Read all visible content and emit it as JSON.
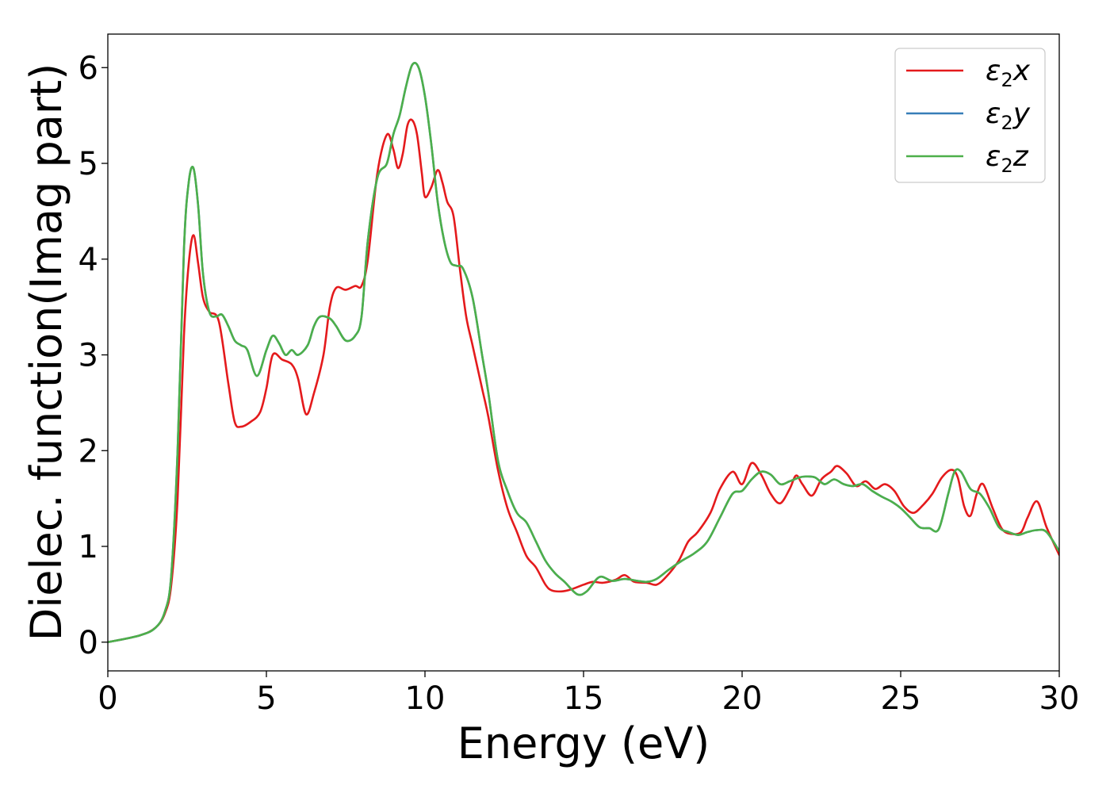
{
  "chart_data": {
    "type": "line",
    "title": "",
    "xlabel": "Energy (eV)",
    "ylabel": "Dielec. function(Imag part)",
    "xlim": [
      0,
      30
    ],
    "ylim": [
      -0.3,
      6.35
    ],
    "xticks": [
      0,
      5,
      10,
      15,
      20,
      25,
      30
    ],
    "xtick_labels": [
      "0",
      "5",
      "10",
      "15",
      "20",
      "25",
      "30"
    ],
    "yticks": [
      0,
      1,
      2,
      3,
      4,
      5,
      6
    ],
    "ytick_labels": [
      "0",
      "1",
      "2",
      "3",
      "4",
      "5",
      "6"
    ],
    "grid": false,
    "legend_position": "top-right",
    "series": [
      {
        "name": "ε2x",
        "label_main": "ε",
        "label_sub": "2",
        "label_var": "x",
        "color": "#e41a1c",
        "x": [
          0,
          1,
          1.5,
          1.8,
          2.0,
          2.2,
          2.4,
          2.55,
          2.7,
          2.85,
          3.0,
          3.2,
          3.5,
          3.8,
          4.0,
          4.2,
          4.5,
          4.8,
          5.0,
          5.2,
          5.5,
          5.8,
          6.0,
          6.25,
          6.5,
          6.8,
          7.0,
          7.2,
          7.5,
          7.8,
          8.0,
          8.2,
          8.5,
          8.8,
          9.0,
          9.15,
          9.3,
          9.45,
          9.6,
          9.75,
          9.9,
          10.0,
          10.2,
          10.4,
          10.55,
          10.7,
          10.9,
          11.1,
          11.3,
          11.5,
          11.8,
          12.0,
          12.3,
          12.6,
          12.9,
          13.2,
          13.5,
          13.8,
          14.0,
          14.3,
          14.6,
          15.0,
          15.3,
          15.6,
          16.0,
          16.3,
          16.6,
          17.0,
          17.3,
          17.6,
          18.0,
          18.3,
          18.6,
          19.0,
          19.3,
          19.7,
          20.0,
          20.3,
          20.6,
          20.9,
          21.2,
          21.5,
          21.7,
          21.9,
          22.2,
          22.5,
          22.8,
          23.0,
          23.3,
          23.6,
          23.9,
          24.2,
          24.5,
          24.8,
          25.1,
          25.4,
          25.7,
          26.0,
          26.3,
          26.6,
          26.8,
          27.0,
          27.2,
          27.4,
          27.6,
          27.9,
          28.2,
          28.5,
          28.8,
          29.0,
          29.3,
          29.6,
          30.0
        ],
        "values": [
          0.0,
          0.07,
          0.15,
          0.3,
          0.6,
          1.5,
          3.2,
          3.95,
          4.25,
          3.95,
          3.6,
          3.45,
          3.35,
          2.7,
          2.3,
          2.25,
          2.3,
          2.4,
          2.65,
          3.0,
          2.95,
          2.9,
          2.75,
          2.38,
          2.6,
          3.0,
          3.5,
          3.7,
          3.68,
          3.72,
          3.72,
          4.0,
          4.9,
          5.3,
          5.15,
          4.95,
          5.1,
          5.4,
          5.45,
          5.3,
          4.9,
          4.65,
          4.75,
          4.93,
          4.8,
          4.6,
          4.45,
          3.9,
          3.4,
          3.1,
          2.65,
          2.35,
          1.8,
          1.4,
          1.15,
          0.9,
          0.78,
          0.6,
          0.54,
          0.53,
          0.55,
          0.6,
          0.63,
          0.62,
          0.65,
          0.7,
          0.63,
          0.62,
          0.6,
          0.68,
          0.85,
          1.05,
          1.15,
          1.35,
          1.6,
          1.78,
          1.65,
          1.87,
          1.75,
          1.55,
          1.45,
          1.6,
          1.74,
          1.65,
          1.53,
          1.7,
          1.78,
          1.84,
          1.76,
          1.63,
          1.68,
          1.6,
          1.65,
          1.58,
          1.42,
          1.35,
          1.43,
          1.55,
          1.72,
          1.8,
          1.72,
          1.42,
          1.32,
          1.55,
          1.65,
          1.4,
          1.18,
          1.13,
          1.15,
          1.3,
          1.47,
          1.2,
          0.91
        ]
      },
      {
        "name": "ε2y",
        "label_main": "ε",
        "label_sub": "2",
        "label_var": "y",
        "color": "#377eb8",
        "x": [
          0,
          1,
          1.5,
          1.8,
          2.0,
          2.2,
          2.4,
          2.55,
          2.7,
          2.85,
          3.0,
          3.2,
          3.4,
          3.6,
          3.8,
          4.0,
          4.2,
          4.4,
          4.7,
          5.0,
          5.2,
          5.4,
          5.6,
          5.8,
          6.0,
          6.3,
          6.5,
          6.7,
          7.0,
          7.2,
          7.5,
          7.8,
          8.0,
          8.2,
          8.5,
          8.8,
          9.0,
          9.2,
          9.4,
          9.6,
          9.8,
          10.0,
          10.2,
          10.4,
          10.6,
          10.8,
          11.0,
          11.2,
          11.5,
          11.8,
          12.0,
          12.3,
          12.6,
          12.9,
          13.2,
          13.5,
          13.8,
          14.1,
          14.4,
          14.8,
          15.1,
          15.5,
          15.9,
          16.3,
          16.7,
          17.0,
          17.3,
          17.7,
          18.1,
          18.5,
          18.9,
          19.3,
          19.7,
          20.0,
          20.3,
          20.6,
          20.9,
          21.2,
          21.5,
          21.8,
          22.0,
          22.3,
          22.6,
          22.9,
          23.2,
          23.5,
          23.8,
          24.1,
          24.4,
          24.7,
          25.0,
          25.3,
          25.6,
          25.9,
          26.2,
          26.5,
          26.7,
          26.9,
          27.2,
          27.5,
          27.8,
          28.1,
          28.4,
          28.7,
          29.0,
          29.3,
          29.6,
          30.0
        ],
        "values": [
          0.0,
          0.07,
          0.15,
          0.32,
          0.7,
          2.0,
          4.1,
          4.8,
          4.95,
          4.55,
          3.85,
          3.45,
          3.4,
          3.42,
          3.3,
          3.15,
          3.1,
          3.05,
          2.78,
          3.05,
          3.2,
          3.12,
          3.0,
          3.05,
          3.0,
          3.1,
          3.3,
          3.4,
          3.38,
          3.3,
          3.15,
          3.2,
          3.4,
          4.2,
          4.85,
          5.0,
          5.3,
          5.5,
          5.8,
          6.03,
          6.0,
          5.7,
          5.2,
          4.6,
          4.2,
          3.97,
          3.93,
          3.9,
          3.6,
          3.0,
          2.6,
          1.9,
          1.58,
          1.35,
          1.25,
          1.05,
          0.85,
          0.72,
          0.63,
          0.5,
          0.53,
          0.68,
          0.64,
          0.66,
          0.64,
          0.63,
          0.66,
          0.76,
          0.85,
          0.93,
          1.05,
          1.3,
          1.55,
          1.58,
          1.7,
          1.78,
          1.75,
          1.65,
          1.68,
          1.72,
          1.73,
          1.72,
          1.65,
          1.7,
          1.65,
          1.63,
          1.65,
          1.58,
          1.52,
          1.47,
          1.4,
          1.3,
          1.2,
          1.19,
          1.18,
          1.55,
          1.78,
          1.78,
          1.6,
          1.55,
          1.4,
          1.2,
          1.15,
          1.12,
          1.15,
          1.17,
          1.15,
          0.95
        ]
      },
      {
        "name": "ε2z",
        "label_main": "ε",
        "label_sub": "2",
        "label_var": "z",
        "color": "#4daf4a",
        "x": [
          0,
          1,
          1.5,
          1.8,
          2.0,
          2.2,
          2.4,
          2.55,
          2.7,
          2.85,
          3.0,
          3.2,
          3.4,
          3.6,
          3.8,
          4.0,
          4.2,
          4.4,
          4.7,
          5.0,
          5.2,
          5.4,
          5.6,
          5.8,
          6.0,
          6.3,
          6.5,
          6.7,
          7.0,
          7.2,
          7.5,
          7.8,
          8.0,
          8.2,
          8.5,
          8.8,
          9.0,
          9.2,
          9.4,
          9.6,
          9.8,
          10.0,
          10.2,
          10.4,
          10.6,
          10.8,
          11.0,
          11.2,
          11.5,
          11.8,
          12.0,
          12.3,
          12.6,
          12.9,
          13.2,
          13.5,
          13.8,
          14.1,
          14.4,
          14.8,
          15.1,
          15.5,
          15.9,
          16.3,
          16.7,
          17.0,
          17.3,
          17.7,
          18.1,
          18.5,
          18.9,
          19.3,
          19.7,
          20.0,
          20.3,
          20.6,
          20.9,
          21.2,
          21.5,
          21.8,
          22.0,
          22.3,
          22.6,
          22.9,
          23.2,
          23.5,
          23.8,
          24.1,
          24.4,
          24.7,
          25.0,
          25.3,
          25.6,
          25.9,
          26.2,
          26.5,
          26.7,
          26.9,
          27.2,
          27.5,
          27.8,
          28.1,
          28.4,
          28.7,
          29.0,
          29.3,
          29.6,
          30.0
        ],
        "values": [
          0.0,
          0.07,
          0.15,
          0.32,
          0.7,
          2.0,
          4.1,
          4.8,
          4.95,
          4.55,
          3.85,
          3.45,
          3.4,
          3.42,
          3.3,
          3.15,
          3.1,
          3.05,
          2.78,
          3.05,
          3.2,
          3.12,
          3.0,
          3.05,
          3.0,
          3.1,
          3.3,
          3.4,
          3.38,
          3.3,
          3.15,
          3.2,
          3.4,
          4.2,
          4.85,
          5.0,
          5.3,
          5.5,
          5.8,
          6.03,
          6.0,
          5.7,
          5.2,
          4.6,
          4.2,
          3.97,
          3.93,
          3.9,
          3.6,
          3.0,
          2.6,
          1.9,
          1.58,
          1.35,
          1.25,
          1.05,
          0.85,
          0.72,
          0.63,
          0.5,
          0.53,
          0.68,
          0.64,
          0.66,
          0.64,
          0.63,
          0.66,
          0.76,
          0.85,
          0.93,
          1.05,
          1.3,
          1.55,
          1.58,
          1.7,
          1.78,
          1.75,
          1.65,
          1.68,
          1.72,
          1.73,
          1.72,
          1.65,
          1.7,
          1.65,
          1.63,
          1.65,
          1.58,
          1.52,
          1.47,
          1.4,
          1.3,
          1.2,
          1.19,
          1.18,
          1.55,
          1.78,
          1.78,
          1.6,
          1.55,
          1.4,
          1.2,
          1.15,
          1.12,
          1.15,
          1.17,
          1.15,
          0.95
        ]
      }
    ]
  }
}
